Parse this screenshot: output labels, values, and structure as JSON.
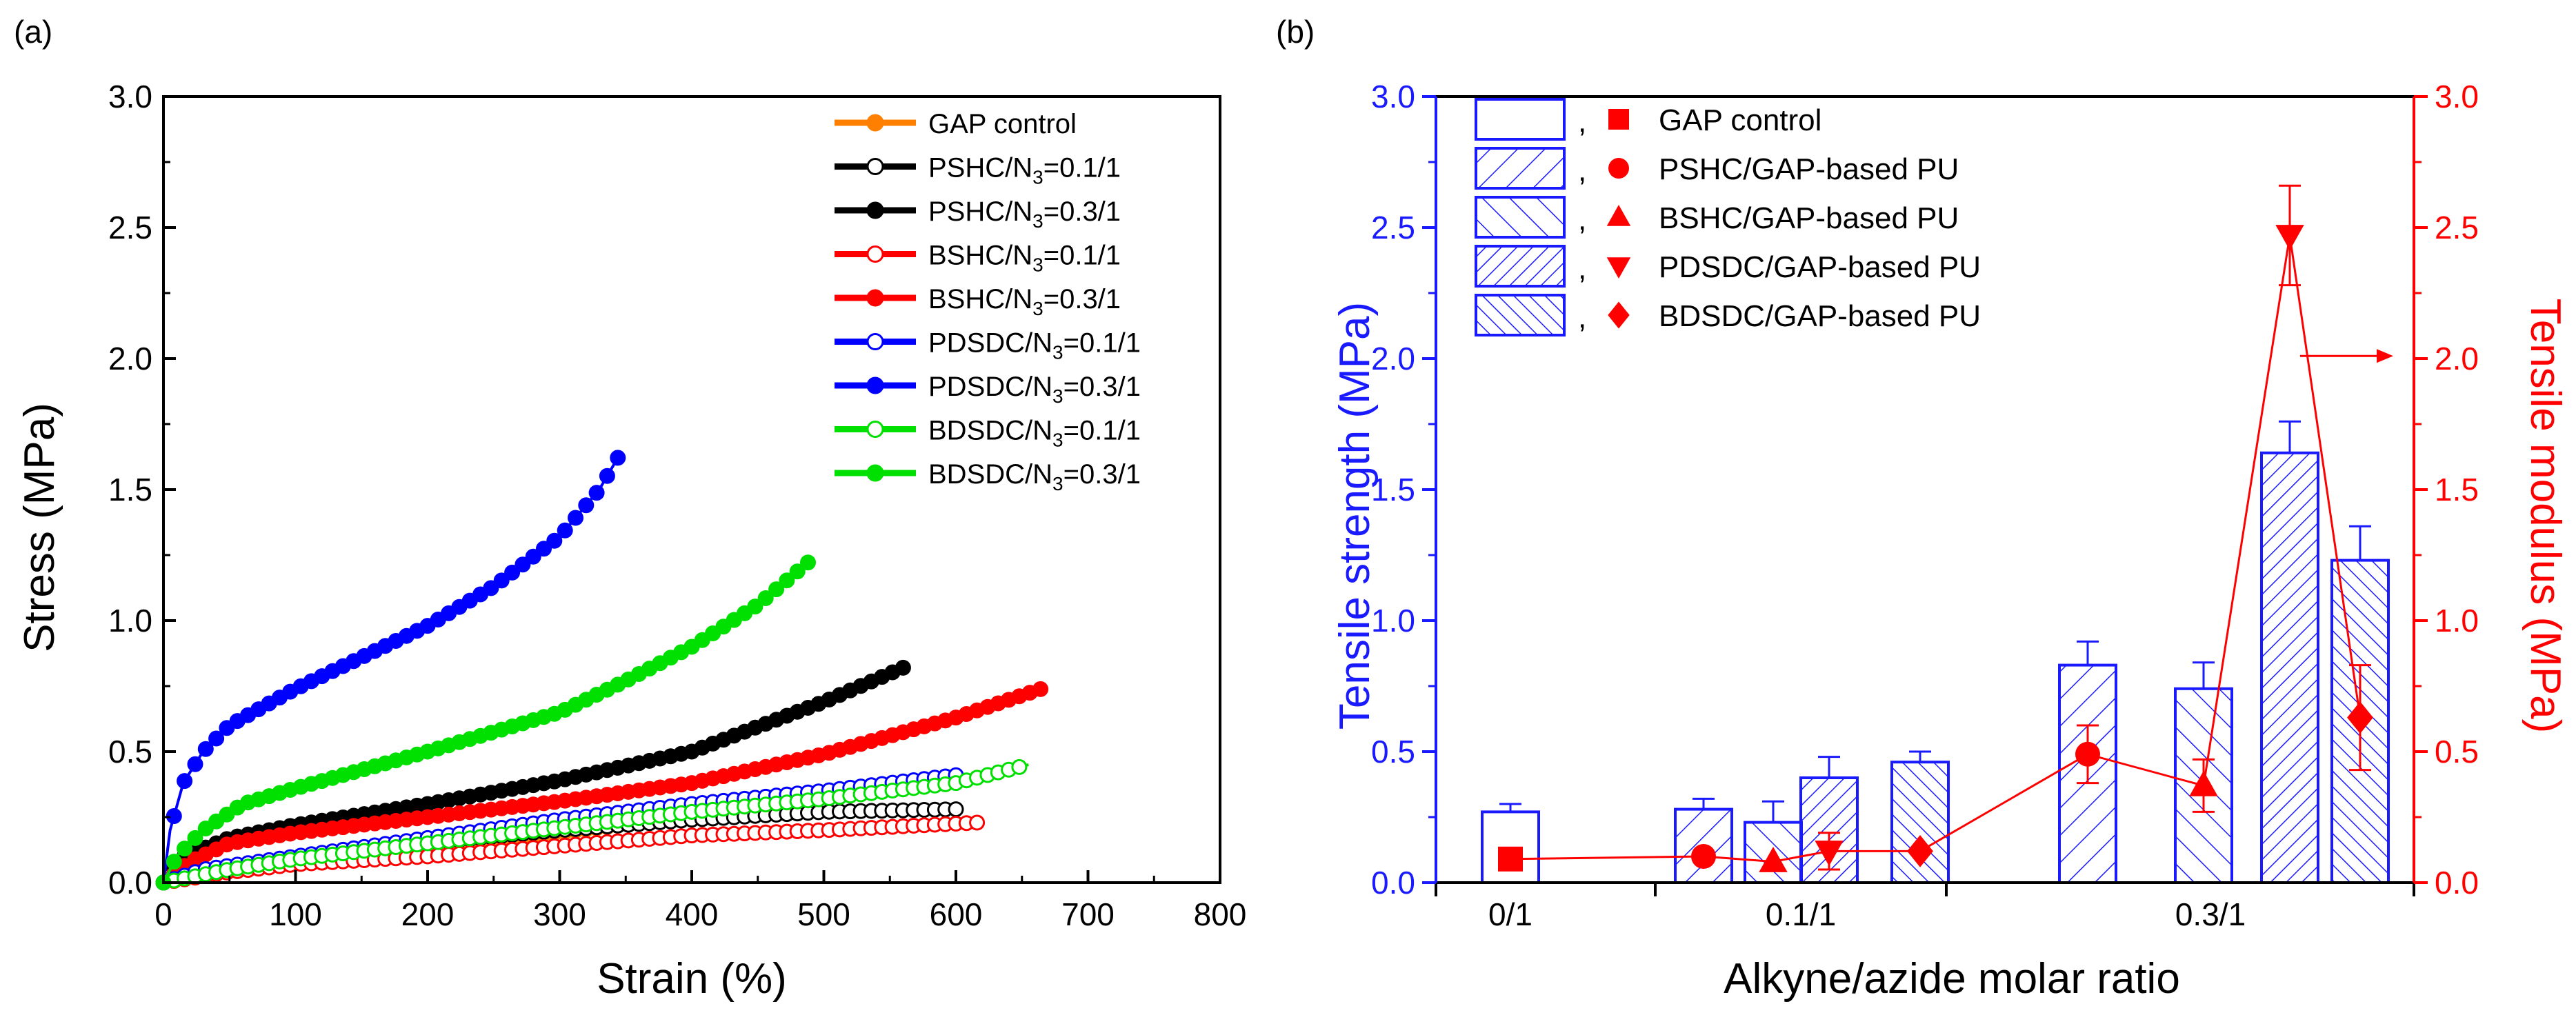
{
  "chart_data": [
    {
      "panel_label": "(a)",
      "type": "scatter",
      "xlabel": "Strain (%)",
      "ylabel": "Stress (MPa)",
      "xlim": [
        0,
        800
      ],
      "ylim": [
        0,
        3.0
      ],
      "xticks": [
        "0",
        "100",
        "200",
        "300",
        "400",
        "500",
        "600",
        "700",
        "800"
      ],
      "yticks": [
        "0.0",
        "0.5",
        "1.0",
        "1.5",
        "2.0",
        "2.5",
        "3.0"
      ],
      "legend_position": "top-right",
      "series": [
        {
          "name": "GAP control",
          "name_main": "GAP control",
          "name_sub": "",
          "name_tail": "",
          "color": "#ff8000",
          "filled": true,
          "points": [
            [
              0,
              0
            ],
            [
              30,
              0.04
            ],
            [
              100,
              0.08
            ],
            [
              200,
              0.14
            ],
            [
              300,
              0.19
            ],
            [
              395,
              0.25
            ]
          ]
        },
        {
          "name": "PSHC/N3=0.1/1",
          "name_main": "PSHC/N",
          "name_sub": "3",
          "name_tail": "=0.1/1",
          "color": "#000000",
          "filled": false,
          "points": [
            [
              0,
              0
            ],
            [
              30,
              0.05
            ],
            [
              100,
              0.09
            ],
            [
              200,
              0.15
            ],
            [
              300,
              0.2
            ],
            [
              400,
              0.24
            ],
            [
              500,
              0.27
            ],
            [
              600,
              0.28
            ]
          ]
        },
        {
          "name": "PSHC/N3=0.3/1",
          "name_main": "PSHC/N",
          "name_sub": "3",
          "name_tail": "=0.3/1",
          "color": "#000000",
          "filled": true,
          "points": [
            [
              0,
              0
            ],
            [
              15,
              0.1
            ],
            [
              50,
              0.17
            ],
            [
              100,
              0.22
            ],
            [
              200,
              0.3
            ],
            [
              300,
              0.39
            ],
            [
              400,
              0.5
            ],
            [
              500,
              0.69
            ],
            [
              560,
              0.82
            ]
          ]
        },
        {
          "name": "BSHC/N3=0.1/1",
          "name_main": "BSHC/N",
          "name_sub": "3",
          "name_tail": "=0.1/1",
          "color": "#ff0000",
          "filled": false,
          "points": [
            [
              0,
              0
            ],
            [
              50,
              0.04
            ],
            [
              100,
              0.07
            ],
            [
              200,
              0.1
            ],
            [
              300,
              0.14
            ],
            [
              400,
              0.18
            ],
            [
              500,
              0.2
            ],
            [
              620,
              0.23
            ]
          ]
        },
        {
          "name": "BSHC/N3=0.3/1",
          "name_main": "BSHC/N",
          "name_sub": "3",
          "name_tail": "=0.3/1",
          "color": "#ff0000",
          "filled": true,
          "points": [
            [
              0,
              0
            ],
            [
              20,
              0.08
            ],
            [
              50,
              0.15
            ],
            [
              100,
              0.19
            ],
            [
              200,
              0.25
            ],
            [
              300,
              0.31
            ],
            [
              400,
              0.38
            ],
            [
              500,
              0.49
            ],
            [
              600,
              0.63
            ],
            [
              665,
              0.74
            ]
          ]
        },
        {
          "name": "PDSDC/N3=0.1/1",
          "name_main": "PDSDC/N",
          "name_sub": "3",
          "name_tail": "=0.1/1",
          "color": "#0000ff",
          "filled": false,
          "points": [
            [
              0,
              0
            ],
            [
              30,
              0.05
            ],
            [
              100,
              0.1
            ],
            [
              200,
              0.17
            ],
            [
              300,
              0.24
            ],
            [
              400,
              0.3
            ],
            [
              500,
              0.35
            ],
            [
              600,
              0.41
            ]
          ]
        },
        {
          "name": "PDSDC/N3=0.3/1",
          "name_main": "PDSDC/N",
          "name_sub": "3",
          "name_tail": "=0.3/1",
          "color": "#0000ff",
          "filled": true,
          "points": [
            [
              0,
              0
            ],
            [
              5,
              0.2
            ],
            [
              15,
              0.38
            ],
            [
              30,
              0.5
            ],
            [
              50,
              0.6
            ],
            [
              100,
              0.74
            ],
            [
              150,
              0.86
            ],
            [
              200,
              0.98
            ],
            [
              250,
              1.13
            ],
            [
              300,
              1.32
            ],
            [
              330,
              1.5
            ],
            [
              345,
              1.63
            ]
          ]
        },
        {
          "name": "BDSDC/N3=0.1/1",
          "name_main": "BDSDC/N",
          "name_sub": "3",
          "name_tail": "=0.1/1",
          "color": "#00e000",
          "filled": false,
          "points": [
            [
              0,
              0
            ],
            [
              50,
              0.05
            ],
            [
              100,
              0.09
            ],
            [
              200,
              0.15
            ],
            [
              300,
              0.21
            ],
            [
              400,
              0.27
            ],
            [
              500,
              0.32
            ],
            [
              600,
              0.38
            ],
            [
              655,
              0.45
            ]
          ]
        },
        {
          "name": "BDSDC/N3=0.3/1",
          "name_main": "BDSDC/N",
          "name_sub": "3",
          "name_tail": "=0.3/1",
          "color": "#00e000",
          "filled": true,
          "points": [
            [
              0,
              0
            ],
            [
              10,
              0.1
            ],
            [
              30,
              0.2
            ],
            [
              60,
              0.3
            ],
            [
              100,
              0.36
            ],
            [
              150,
              0.43
            ],
            [
              200,
              0.5
            ],
            [
              300,
              0.65
            ],
            [
              350,
              0.77
            ],
            [
              400,
              0.9
            ],
            [
              450,
              1.06
            ],
            [
              490,
              1.23
            ]
          ]
        }
      ]
    },
    {
      "panel_label": "(b)",
      "type": "bar",
      "xlabel": "Alkyne/azide molar ratio",
      "ylabel_left": "Tensile strength (MPa)",
      "ylabel_right": "Tensile modulus (MPa)",
      "categories": [
        "0/1",
        "0.1/1",
        "0.3/1"
      ],
      "ylim_left": [
        0,
        3.0
      ],
      "ylim_right": [
        0,
        3.0
      ],
      "yticks_left": [
        "0.0",
        "0.5",
        "1.0",
        "1.5",
        "2.0",
        "2.5",
        "3.0"
      ],
      "yticks_right": [
        "0.0",
        "0.5",
        "1.0",
        "1.5",
        "2.0",
        "2.5",
        "3.0"
      ],
      "left_axis_color": "#1a1aff",
      "right_axis_color": "#ff0000",
      "legend_position": "top-left",
      "legend": [
        {
          "pattern": "none",
          "marker": "square",
          "label": "GAP control"
        },
        {
          "pattern": "diag-up",
          "marker": "circle",
          "label": "PSHC/GAP-based PU"
        },
        {
          "pattern": "diag-down",
          "marker": "triangle-up",
          "label": "BSHC/GAP-based PU"
        },
        {
          "pattern": "diag-up-dense",
          "marker": "triangle-down",
          "label": "PDSDC/GAP-based PU"
        },
        {
          "pattern": "diag-down-dense",
          "marker": "diamond",
          "label": "BDSDC/GAP-based PU"
        }
      ],
      "legend_separator": ",",
      "bars": [
        {
          "group": "0/1",
          "sample": "GAP control",
          "pattern": "none",
          "value": 0.27,
          "error": 0.03
        },
        {
          "group": "0.1/1",
          "sample": "PSHC",
          "pattern": "diag-up",
          "value": 0.28,
          "error": 0.04
        },
        {
          "group": "0.1/1",
          "sample": "BSHC",
          "pattern": "diag-down",
          "value": 0.23,
          "error": 0.08
        },
        {
          "group": "0.1/1",
          "sample": "PDSDC",
          "pattern": "diag-up-dense",
          "value": 0.4,
          "error": 0.08
        },
        {
          "group": "0.1/1",
          "sample": "BDSDC",
          "pattern": "diag-down-dense",
          "value": 0.46,
          "error": 0.04
        },
        {
          "group": "0.3/1",
          "sample": "PSHC",
          "pattern": "diag-up",
          "value": 0.83,
          "error": 0.09
        },
        {
          "group": "0.3/1",
          "sample": "BSHC",
          "pattern": "diag-down",
          "value": 0.74,
          "error": 0.1
        },
        {
          "group": "0.3/1",
          "sample": "PDSDC",
          "pattern": "diag-up-dense",
          "value": 1.64,
          "error": 0.12
        },
        {
          "group": "0.3/1",
          "sample": "BDSDC",
          "pattern": "diag-down-dense",
          "value": 1.23,
          "error": 0.13
        }
      ],
      "modulus_points": [
        {
          "sample": "GAP control",
          "marker": "square",
          "value": 0.09,
          "error": 0
        },
        {
          "sample": "PSHC 0.1/1",
          "marker": "circle",
          "value": 0.1,
          "error": 0
        },
        {
          "sample": "BSHC 0.1/1",
          "marker": "triangle-up",
          "value": 0.08,
          "error": 0
        },
        {
          "sample": "PDSDC 0.1/1",
          "marker": "triangle-down",
          "value": 0.12,
          "error": 0.07
        },
        {
          "sample": "BDSDC 0.1/1",
          "marker": "diamond",
          "value": 0.12,
          "error": 0
        },
        {
          "sample": "PSHC 0.3/1",
          "marker": "circle",
          "value": 0.49,
          "error": 0.11
        },
        {
          "sample": "BSHC 0.3/1",
          "marker": "triangle-up",
          "value": 0.37,
          "error": 0.1
        },
        {
          "sample": "PDSDC 0.3/1",
          "marker": "triangle-down",
          "value": 2.47,
          "error": 0.19
        },
        {
          "sample": "BDSDC 0.3/1",
          "marker": "diamond",
          "value": 0.63,
          "error": 0.2
        }
      ],
      "annotation": "arrow pointing to right (modulus) axis"
    }
  ]
}
